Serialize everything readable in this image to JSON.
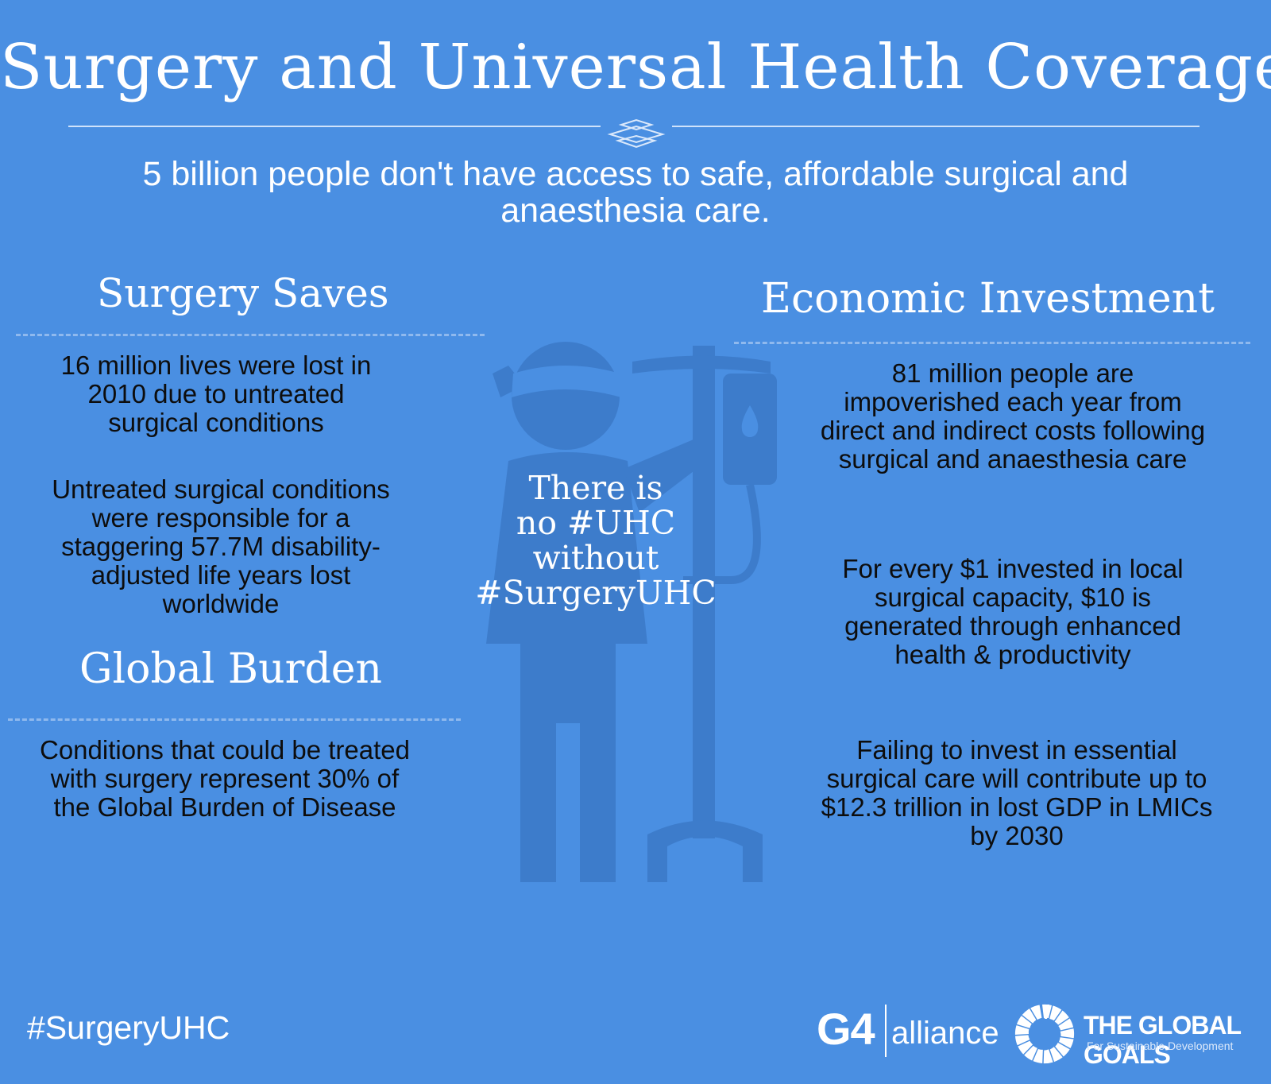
{
  "title": "Surgery and Universal Health Coverage",
  "subtitle": "5 billion people don't have access to safe, affordable surgical and anaesthesia care.",
  "left": {
    "heading_saves": "Surgery Saves",
    "saves_1": "16 million lives were lost in 2010 due to untreated surgical conditions",
    "saves_2": "Untreated surgical conditions were responsible for a staggering 57.7M disability-adjusted life years lost worldwide",
    "heading_burden": "Global Burden",
    "burden_1": "Conditions that could be treated with surgery represent 30% of the Global Burden of Disease"
  },
  "center": {
    "line1": "There is",
    "line2": "no #UHC",
    "line3": "without",
    "line4": "#SurgeryUHC"
  },
  "right": {
    "heading": "Economic Investment",
    "econ_1": "81 million people are impoverished each year from direct and indirect costs following surgical and anaesthesia care",
    "econ_2": "For every $1 invested in  local surgical capacity, $10 is generated through enhanced health & productivity",
    "econ_3": "Failing to invest in essential surgical care will contribute up to $12.3 trillion in lost GDP in LMICs by 2030"
  },
  "footer": {
    "hashtag": "#SurgeryUHC",
    "g4": "G4",
    "alliance": "alliance",
    "global_goals": "THE GLOBAL GOALS",
    "global_goals_sub": "For Sustainable Development"
  },
  "colors": {
    "background": "#4a8fe2",
    "illustration": "#3d7ccb"
  },
  "icons": [
    "patient-iv-illustration",
    "divider-ornament-icon",
    "global-goals-wheel-icon"
  ]
}
